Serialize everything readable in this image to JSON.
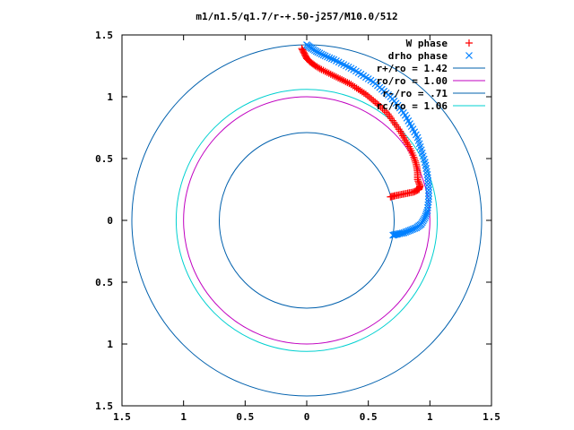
{
  "chart_data": {
    "type": "scatter",
    "title": "m1/n1.5/q1.7/r-+.50-j257/M10.0/512",
    "xlabel": "",
    "ylabel": "",
    "xlim": [
      -1.5,
      1.5
    ],
    "ylim": [
      -1.5,
      1.5
    ],
    "x_ticks": [
      -1.5,
      -1,
      -0.5,
      0,
      0.5,
      1,
      1.5
    ],
    "x_tick_labels": [
      "1.5",
      "1",
      "0.5",
      "0",
      "0.5",
      "1",
      "1.5"
    ],
    "y_ticks": [
      1.5,
      1,
      0.5,
      0,
      -0.5,
      -1,
      -1.5
    ],
    "y_tick_labels": [
      "1.5",
      "1",
      "0.5",
      "0",
      "0.5",
      "1",
      "1.5"
    ],
    "grid": false,
    "legend_position": "top-right",
    "series": [
      {
        "name": "W phase",
        "kind": "points",
        "marker": "plus",
        "color": "#ff0000",
        "x": [
          -0.04,
          -0.02,
          0.0,
          0.03,
          0.07,
          0.12,
          0.18,
          0.24,
          0.3,
          0.36,
          0.42,
          0.48,
          0.54,
          0.6,
          0.66,
          0.71,
          0.76,
          0.8,
          0.84,
          0.87,
          0.89,
          0.9,
          0.9,
          0.92,
          0.91,
          0.87,
          0.82,
          0.77,
          0.72,
          0.68
        ],
        "y": [
          1.39,
          1.35,
          1.31,
          1.28,
          1.25,
          1.22,
          1.19,
          1.16,
          1.13,
          1.1,
          1.06,
          1.02,
          0.97,
          0.92,
          0.86,
          0.79,
          0.72,
          0.65,
          0.58,
          0.51,
          0.45,
          0.39,
          0.33,
          0.28,
          0.25,
          0.23,
          0.22,
          0.21,
          0.2,
          0.19
        ]
      },
      {
        "name": "drho phase",
        "kind": "points",
        "marker": "cross",
        "color": "#0080ff",
        "x": [
          0.0,
          0.04,
          0.09,
          0.15,
          0.22,
          0.3,
          0.38,
          0.46,
          0.54,
          0.61,
          0.68,
          0.74,
          0.8,
          0.85,
          0.9,
          0.93,
          0.96,
          0.98,
          0.99,
          0.99,
          0.98,
          0.96,
          0.93,
          0.89,
          0.84,
          0.79,
          0.74,
          0.7
        ],
        "y": [
          1.42,
          1.39,
          1.36,
          1.33,
          1.3,
          1.26,
          1.22,
          1.17,
          1.12,
          1.06,
          1.0,
          0.93,
          0.85,
          0.76,
          0.67,
          0.57,
          0.47,
          0.37,
          0.27,
          0.17,
          0.08,
          0.02,
          -0.03,
          -0.06,
          -0.08,
          -0.1,
          -0.11,
          -0.12
        ]
      },
      {
        "name": "r+/ro = 1.42",
        "kind": "circle",
        "radius": 1.42,
        "color": "#0060ad"
      },
      {
        "name": "ro/ro = 1.00",
        "kind": "circle",
        "radius": 1.0,
        "color": "#c000c0"
      },
      {
        "name": "r-/ro = .71",
        "kind": "circle",
        "radius": 0.71,
        "color": "#0060ad"
      },
      {
        "name": "rc/ro = 1.06",
        "kind": "circle",
        "radius": 1.06,
        "color": "#00d0d0"
      }
    ]
  }
}
